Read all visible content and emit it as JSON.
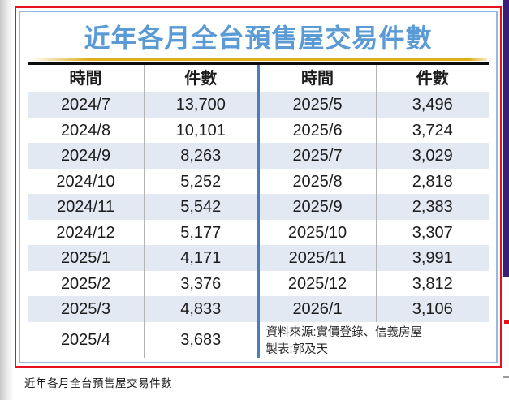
{
  "infographic": {
    "title": "近年各月全台預售屋交易件數",
    "table": {
      "headers": {
        "time": "時間",
        "count": "件數"
      },
      "left": {
        "rows": [
          [
            "2024/7",
            "13,700"
          ],
          [
            "2024/8",
            "10,101"
          ],
          [
            "2024/9",
            "8,263"
          ],
          [
            "2024/10",
            "5,252"
          ],
          [
            "2024/11",
            "5,542"
          ],
          [
            "2024/12",
            "5,177"
          ],
          [
            "2025/1",
            "4,171"
          ],
          [
            "2025/2",
            "3,376"
          ],
          [
            "2025/3",
            "4,833"
          ]
        ],
        "last": [
          "2025/4",
          "3,683"
        ]
      },
      "right": {
        "rows": [
          [
            "2025/5",
            "3,496"
          ],
          [
            "2025/6",
            "3,724"
          ],
          [
            "2025/7",
            "3,029"
          ],
          [
            "2025/8",
            "2,818"
          ],
          [
            "2025/9",
            "2,383"
          ],
          [
            "2025/10",
            "3,307"
          ],
          [
            "2025/11",
            "3,991"
          ],
          [
            "2025/12",
            "3,812"
          ],
          [
            "2026/1",
            "3,106"
          ]
        ],
        "source_line1": "資料來源:實價登錄、信義房屋",
        "source_line2": "製表:郭及天"
      }
    }
  },
  "caption": "近年各月全台預售屋交易件數",
  "colors": {
    "title_blue": "#5B9BD5",
    "gold_rule": "#DFAE1C",
    "row_alt_blue": "#E3E9F2",
    "mid_divider_blue": "#4A7EBB",
    "outer_border_red": "#E8101C",
    "inner_border_blue": "#97B9E0",
    "side_strip_purple": "#3B1E75"
  },
  "chart_data": {
    "type": "table",
    "title": "近年各月全台預售屋交易件數",
    "columns": [
      "時間",
      "件數",
      "時間",
      "件數"
    ],
    "rows": [
      [
        "2024/7",
        "13,700",
        "2025/5",
        "3,496"
      ],
      [
        "2024/8",
        "10,101",
        "2025/6",
        "3,724"
      ],
      [
        "2024/9",
        "8,263",
        "2025/7",
        "3,029"
      ],
      [
        "2024/10",
        "5,252",
        "2025/8",
        "2,818"
      ],
      [
        "2024/11",
        "5,542",
        "2025/9",
        "2,383"
      ],
      [
        "2024/12",
        "5,177",
        "2025/10",
        "3,307"
      ],
      [
        "2025/1",
        "4,171",
        "2025/11",
        "3,991"
      ],
      [
        "2025/2",
        "3,376",
        "2025/12",
        "3,812"
      ],
      [
        "2025/3",
        "4,833",
        "2026/1",
        "3,106"
      ],
      [
        "2025/4",
        "3,683",
        "",
        ""
      ]
    ],
    "source": "資料來源:實價登錄、信義房屋",
    "made_by": "製表:郭及天"
  }
}
